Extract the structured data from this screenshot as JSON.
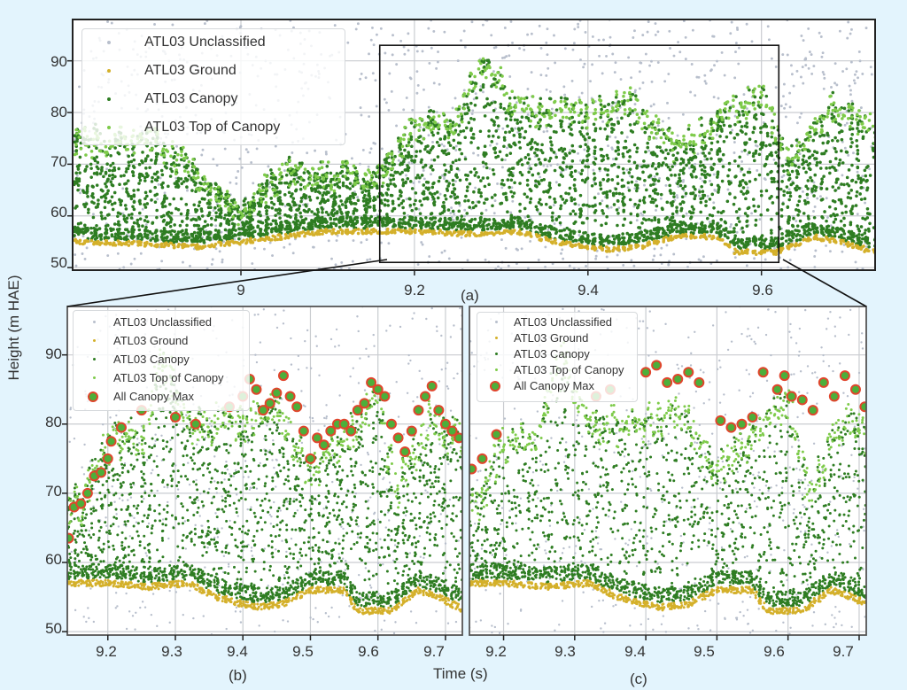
{
  "figure": {
    "background": "#e3f4fd",
    "ylabel": "Height (m HAE)",
    "xlabel": "Time (s)",
    "colors": {
      "unclassified": "#b8bfcc",
      "ground": "#d4b02a",
      "canopy": "#2e7d22",
      "top_of_canopy": "#7ecb4a",
      "canopy_max_fill": "#4caf3a",
      "canopy_max_edge": "#e0452c",
      "grid": "#c9ccd0",
      "axes": "#222222"
    }
  },
  "panels": {
    "a": {
      "label": "(a)",
      "xticks": [
        "9",
        "9.2",
        "9.4",
        "9.6"
      ],
      "yticks": [
        "90",
        "80",
        "70",
        "60",
        "50"
      ],
      "legend": [
        "ATL03 Unclassified",
        "ATL03 Ground",
        "ATL03 Canopy",
        "ATL03 Top of Canopy"
      ]
    },
    "b": {
      "label": "(b)",
      "xticks": [
        "9.2",
        "9.3",
        "9.4",
        "9.5",
        "9.6",
        "9.7"
      ],
      "yticks": [
        "90",
        "80",
        "70",
        "60",
        "50"
      ],
      "legend": [
        "ATL03 Unclassified",
        "ATL03 Ground",
        "ATL03 Canopy",
        "ATL03 Top of Canopy",
        "All Canopy Max"
      ]
    },
    "c": {
      "label": "(c)",
      "xticks": [
        "9.2",
        "9.3",
        "9.4",
        "9.5",
        "9.6",
        "9.7"
      ],
      "legend": [
        "ATL03 Unclassified",
        "ATL03 Ground",
        "ATL03 Canopy",
        "ATL03 Top of Canopy",
        "All Canopy Max"
      ]
    }
  },
  "chart_data": [
    {
      "type": "scatter",
      "panel": "a",
      "title": "(a)",
      "xlabel": "Time (s)",
      "ylabel": "Height (m HAE)",
      "xlim": [
        8.806,
        9.731
      ],
      "ylim": [
        49.5,
        98
      ],
      "xticks": [
        9,
        9.2,
        9.4,
        9.6
      ],
      "yticks": [
        50,
        60,
        70,
        80,
        90
      ],
      "grid": true,
      "legend_position": "upper left",
      "zoom_box": {
        "x": [
          9.16,
          9.62
        ],
        "y": [
          51,
          93
        ]
      },
      "series": [
        {
          "name": "ATL03 Unclassified",
          "color": "#b8bfcc",
          "y_range": [
            49.5,
            98
          ],
          "note": "sparse noise photons over full height"
        },
        {
          "name": "ATL03 Ground",
          "color": "#d4b02a",
          "ground_profile": {
            "x": [
              8.81,
              8.9,
              8.95,
              9.0,
              9.05,
              9.1,
              9.2,
              9.26,
              9.32,
              9.36,
              9.42,
              9.46,
              9.5,
              9.55,
              9.57,
              9.62,
              9.66,
              9.69,
              9.73
            ],
            "y": [
              55,
              54.5,
              54,
              55,
              56,
              57,
              57,
              56.5,
              57,
              55,
              53.5,
              54,
              56,
              56,
              53,
              53,
              56,
              55,
              53
            ]
          }
        },
        {
          "name": "ATL03 Canopy",
          "color": "#2e7d22",
          "y_range": [
            55,
            89
          ]
        },
        {
          "name": "ATL03 Top of Canopy",
          "color": "#7ecb4a",
          "canopy_top_profile": {
            "x": [
              8.81,
              8.9,
              9.0,
              9.05,
              9.16,
              9.2,
              9.25,
              9.28,
              9.32,
              9.4,
              9.45,
              9.5,
              9.55,
              9.6,
              9.63,
              9.68,
              9.73
            ],
            "y": [
              76,
              77,
              62,
              70,
              70,
              79,
              80,
              92,
              82,
              82,
              84,
              75,
              80,
              85,
              72,
              83,
              78
            ]
          }
        }
      ]
    },
    {
      "type": "scatter",
      "panel": "b",
      "title": "(b)",
      "xlabel": "Time (s)",
      "ylabel": "Height (m HAE)",
      "xlim": [
        9.14,
        9.725
      ],
      "ylim": [
        49.5,
        97
      ],
      "xticks": [
        9.2,
        9.3,
        9.4,
        9.5,
        9.6,
        9.7
      ],
      "yticks": [
        50,
        60,
        70,
        80,
        90
      ],
      "grid": true,
      "legend_position": "upper left",
      "series": [
        {
          "name": "ATL03 Unclassified",
          "color": "#b8bfcc"
        },
        {
          "name": "ATL03 Ground",
          "color": "#d4b02a"
        },
        {
          "name": "ATL03 Canopy",
          "color": "#2e7d22"
        },
        {
          "name": "ATL03 Top of Canopy",
          "color": "#7ecb4a"
        },
        {
          "name": "All Canopy Max",
          "color": "#4caf3a",
          "edgecolor": "#e0452c",
          "x": [
            9.142,
            9.15,
            9.16,
            9.17,
            9.18,
            9.19,
            9.2,
            9.205,
            9.22,
            9.25,
            9.3,
            9.33,
            9.38,
            9.4,
            9.41,
            9.42,
            9.43,
            9.44,
            9.45,
            9.46,
            9.47,
            9.48,
            9.49,
            9.5,
            9.51,
            9.52,
            9.53,
            9.54,
            9.55,
            9.56,
            9.57,
            9.58,
            9.59,
            9.6,
            9.61,
            9.62,
            9.63,
            9.64,
            9.65,
            9.66,
            9.67,
            9.68,
            9.69,
            9.7,
            9.71,
            9.72
          ],
          "y": [
            63.5,
            68,
            68.5,
            70,
            72.5,
            73,
            75,
            77.5,
            79.5,
            82,
            81,
            80,
            82.5,
            84,
            86.5,
            85,
            82,
            83,
            84.5,
            87,
            84,
            82.5,
            79,
            75,
            78,
            77,
            79,
            80,
            80,
            79,
            82,
            83,
            86,
            85,
            84,
            80,
            78,
            76,
            79,
            82,
            84,
            85.5,
            82,
            80,
            79,
            78
          ]
        }
      ]
    },
    {
      "type": "scatter",
      "panel": "c",
      "title": "(c)",
      "xlabel": "Time (s)",
      "ylabel": "Height (m HAE)",
      "xlim": [
        9.152,
        9.71
      ],
      "ylim": [
        49.5,
        97
      ],
      "xticks": [
        9.2,
        9.3,
        9.4,
        9.5,
        9.6,
        9.7
      ],
      "yticks": [
        50,
        60,
        70,
        80,
        90
      ],
      "grid": true,
      "legend_position": "upper left",
      "series": [
        {
          "name": "ATL03 Unclassified",
          "color": "#b8bfcc"
        },
        {
          "name": "ATL03 Ground",
          "color": "#d4b02a"
        },
        {
          "name": "ATL03 Canopy",
          "color": "#2e7d22"
        },
        {
          "name": "ATL03 Top of Canopy",
          "color": "#7ecb4a"
        },
        {
          "name": "All Canopy Max",
          "color": "#4caf3a",
          "edgecolor": "#e0452c",
          "x": [
            9.155,
            9.17,
            9.19,
            9.33,
            9.35,
            9.4,
            9.415,
            9.43,
            9.445,
            9.46,
            9.475,
            9.505,
            9.52,
            9.535,
            9.55,
            9.565,
            9.585,
            9.595,
            9.605,
            9.62,
            9.635,
            9.65,
            9.665,
            9.68,
            9.695,
            9.708
          ],
          "y": [
            73.5,
            75,
            78.5,
            84,
            85,
            87.5,
            88.5,
            86,
            86.5,
            87.5,
            86,
            80.5,
            79.5,
            80,
            81,
            87.5,
            85,
            87,
            84,
            83.5,
            82,
            86,
            84,
            87,
            85,
            82.5
          ]
        }
      ]
    }
  ]
}
